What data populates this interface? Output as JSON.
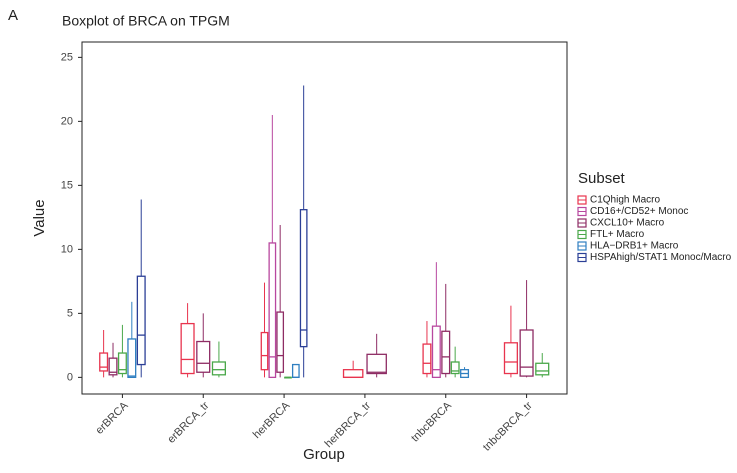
{
  "panel_label": "A",
  "chart_data": {
    "type": "boxplot",
    "title": "Boxplot of BRCA on TPGM",
    "x_label": "Group",
    "y_label": "Value",
    "legend_title": "Subset",
    "categories": [
      "erBRCA",
      "erBRCA_tr",
      "herBRCA",
      "herBRCA_tr",
      "tnbcBRCA",
      "tnbcBRCA_tr"
    ],
    "ylim": [
      -1.3,
      26.2
    ],
    "yticks": [
      0,
      5,
      10,
      15,
      20,
      25
    ],
    "grid": false,
    "series": [
      {
        "name": "C1Qhigh Macro",
        "color": "#e8344e",
        "values": [
          {
            "min": 0,
            "q1": 0.5,
            "median": 0.8,
            "q3": 1.9,
            "max": 3.7
          },
          {
            "min": 0,
            "q1": 0.3,
            "median": 1.4,
            "q3": 4.2,
            "max": 5.8
          },
          {
            "min": 0,
            "q1": 0.6,
            "median": 1.7,
            "q3": 3.5,
            "max": 7.4
          },
          {
            "min": 0,
            "q1": 0,
            "median": 0,
            "q3": 0.6,
            "max": 1.3
          },
          {
            "min": 0,
            "q1": 0.3,
            "median": 1.1,
            "q3": 2.6,
            "max": 4.4
          },
          {
            "min": 0,
            "q1": 0.3,
            "median": 1.2,
            "q3": 2.7,
            "max": 5.6
          }
        ]
      },
      {
        "name": "CD16+/CD52+ Monoc",
        "color": "#b8479f",
        "values": [
          null,
          null,
          {
            "min": 0,
            "q1": 0,
            "median": 1.6,
            "q3": 10.5,
            "max": 20.5
          },
          null,
          {
            "min": 0,
            "q1": 0,
            "median": 0.6,
            "q3": 4.0,
            "max": 9.0
          },
          null
        ]
      },
      {
        "name": "CXCL10+ Macro",
        "color": "#8e2c64",
        "values": [
          {
            "min": 0,
            "q1": 0.2,
            "median": 0.4,
            "q3": 1.5,
            "max": 2.7
          },
          {
            "min": 0,
            "q1": 0.4,
            "median": 1.1,
            "q3": 2.8,
            "max": 5.0
          },
          {
            "min": 0,
            "q1": 0.4,
            "median": 1.7,
            "q3": 5.1,
            "max": 11.9
          },
          {
            "min": 0,
            "q1": 0.3,
            "median": 0.4,
            "q3": 1.8,
            "max": 3.4
          },
          {
            "min": 0,
            "q1": 0.3,
            "median": 1.6,
            "q3": 3.6,
            "max": 7.3
          },
          {
            "min": 0,
            "q1": 0.1,
            "median": 0.8,
            "q3": 3.7,
            "max": 7.6
          }
        ]
      },
      {
        "name": "FTL+ Macro",
        "color": "#4aa84a",
        "values": [
          {
            "min": 0,
            "q1": 0.3,
            "median": 0.6,
            "q3": 1.9,
            "max": 4.1
          },
          {
            "min": 0,
            "q1": 0.2,
            "median": 0.6,
            "q3": 1.2,
            "max": 2.8
          },
          {
            "min": 0,
            "q1": 0,
            "median": 0,
            "q3": 0,
            "max": 0
          },
          null,
          {
            "min": 0,
            "q1": 0.3,
            "median": 0.5,
            "q3": 1.2,
            "max": 2.4
          },
          {
            "min": 0,
            "q1": 0.2,
            "median": 0.5,
            "q3": 1.1,
            "max": 1.9
          }
        ]
      },
      {
        "name": "HLA−DRB1+ Macro",
        "color": "#2f7fc1",
        "values": [
          {
            "min": 0,
            "q1": 0,
            "median": 0.1,
            "q3": 3.0,
            "max": 5.9
          },
          null,
          {
            "min": 0,
            "q1": 0,
            "median": 0,
            "q3": 1.0,
            "max": 1.0
          },
          null,
          {
            "min": 0,
            "q1": 0,
            "median": 0.3,
            "q3": 0.6,
            "max": 0.8
          },
          null
        ]
      },
      {
        "name": "HSPAhigh/STAT1 Monoc/Macro",
        "color": "#2b3f96",
        "values": [
          {
            "min": 0,
            "q1": 1.0,
            "median": 3.3,
            "q3": 7.9,
            "max": 13.9
          },
          null,
          {
            "min": 0,
            "q1": 2.4,
            "median": 3.7,
            "q3": 13.1,
            "max": 22.8
          },
          null,
          null,
          null
        ]
      }
    ]
  }
}
